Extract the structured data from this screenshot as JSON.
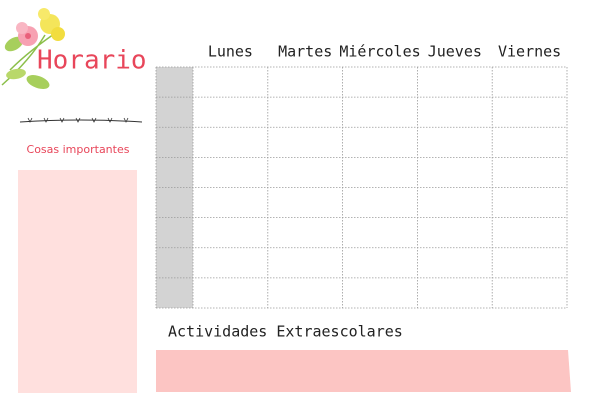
{
  "header": {
    "title": "Horario",
    "subtitle": "Cosas importantes"
  },
  "table": {
    "days": [
      "Lunes",
      "Martes",
      "Miércoles",
      "Jueves",
      "Viernes"
    ]
  },
  "activities": {
    "title": "Actividades Extraescolares"
  }
}
